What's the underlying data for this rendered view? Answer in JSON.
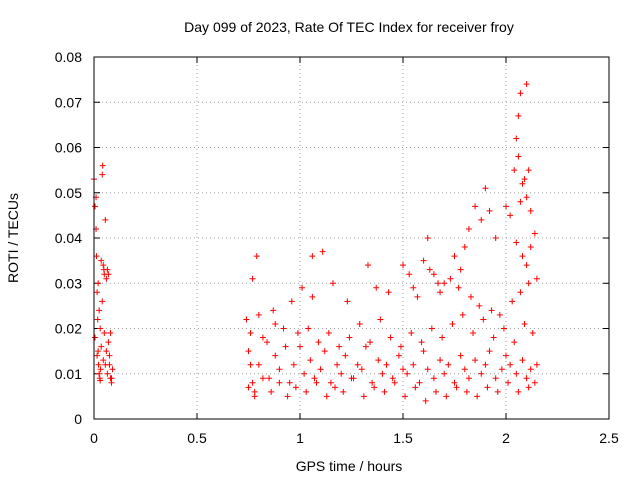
{
  "chart_data": {
    "type": "scatter",
    "title": "Day 099 of 2023, Rate Of TEC Index for receiver froy",
    "xlabel": "GPS time / hours",
    "ylabel": "ROTI / TECUs",
    "xlim": [
      0,
      2.5
    ],
    "ylim": [
      0,
      0.08
    ],
    "grid": true,
    "marker": "+",
    "color": "#ff0000",
    "xticks": [
      0,
      0.5,
      1,
      1.5,
      2,
      2.5
    ],
    "xtick_labels": [
      "0",
      "0.5",
      "1",
      "1.5",
      "2",
      "2.5"
    ],
    "yticks": [
      0,
      0.01,
      0.02,
      0.03,
      0.04,
      0.05,
      0.06,
      0.07,
      0.08
    ],
    "ytick_labels": [
      "0",
      "0.01",
      "0.02",
      "0.03",
      "0.04",
      "0.05",
      "0.06",
      "0.07",
      "0.08"
    ],
    "series": [
      {
        "name": "ROTI",
        "x": [
          0.0,
          0.005,
          0.01,
          0.012,
          0.015,
          0.018,
          0.02,
          0.022,
          0.025,
          0.028,
          0.03,
          0.032,
          0.035,
          0.04,
          0.042,
          0.045,
          0.048,
          0.05,
          0.055,
          0.06,
          0.065,
          0.07,
          0.075,
          0.08,
          0.085,
          0.09,
          0.005,
          0.015,
          0.025,
          0.035,
          0.045,
          0.055,
          0.065,
          0.075,
          0.085,
          0.01,
          0.02,
          0.03,
          0.04,
          0.05,
          0.06,
          0.07,
          0.08,
          0.74,
          0.75,
          0.76,
          0.77,
          0.78,
          0.8,
          0.82,
          0.85,
          0.88,
          0.9,
          0.92,
          0.95,
          0.97,
          1.0,
          1.02,
          1.05,
          1.07,
          1.1,
          1.12,
          1.15,
          1.18,
          1.2,
          1.22,
          1.25,
          1.28,
          1.3,
          1.32,
          1.35,
          1.38,
          1.4,
          1.42,
          1.45,
          1.48,
          1.5,
          1.52,
          1.55,
          1.58,
          1.6,
          1.62,
          1.65,
          1.68,
          1.7,
          1.72,
          1.75,
          1.78,
          1.8,
          1.82,
          1.85,
          1.88,
          1.9,
          1.92,
          1.95,
          1.98,
          2.0,
          2.02,
          2.05,
          2.08,
          2.1,
          2.12,
          2.15,
          0.75,
          0.78,
          0.82,
          0.86,
          0.9,
          0.94,
          0.98,
          1.03,
          1.08,
          1.13,
          1.17,
          1.21,
          1.26,
          1.31,
          1.36,
          1.41,
          1.46,
          1.51,
          1.56,
          1.61,
          1.66,
          1.71,
          1.76,
          1.81,
          1.86,
          1.91,
          1.96,
          2.01,
          2.06,
          2.11,
          2.14,
          0.76,
          0.8,
          0.84,
          0.88,
          0.93,
          0.99,
          1.04,
          1.09,
          1.14,
          1.19,
          1.24,
          1.29,
          1.34,
          1.39,
          1.44,
          1.49,
          1.54,
          1.59,
          1.64,
          1.69,
          1.74,
          1.79,
          1.84,
          1.89,
          1.94,
          1.99,
          2.04,
          2.09,
          2.13,
          0.77,
          0.79,
          0.87,
          0.96,
          1.01,
          1.06,
          1.06,
          1.11,
          1.16,
          1.23,
          1.33,
          1.37,
          1.43,
          1.53,
          1.57,
          1.63,
          1.67,
          1.73,
          1.77,
          1.83,
          1.87,
          1.93,
          1.97,
          2.03,
          2.07,
          2.11,
          2.15,
          1.5,
          1.55,
          1.6,
          1.62,
          1.65,
          1.68,
          1.7,
          1.75,
          1.78,
          1.8,
          1.82,
          1.85,
          1.88,
          1.9,
          1.92,
          1.95,
          2.0,
          2.02,
          2.05,
          2.07,
          2.08,
          2.1,
          2.12,
          2.14,
          2.04,
          2.05,
          2.06,
          2.07,
          2.06,
          2.08,
          2.09,
          2.1,
          2.1,
          2.11,
          2.12
        ],
        "y": [
          0.053,
          0.047,
          0.042,
          0.036,
          0.028,
          0.022,
          0.015,
          0.012,
          0.01,
          0.009,
          0.0085,
          0.011,
          0.035,
          0.054,
          0.056,
          0.034,
          0.033,
          0.032,
          0.044,
          0.031,
          0.033,
          0.032,
          0.012,
          0.009,
          0.008,
          0.011,
          0.018,
          0.014,
          0.024,
          0.016,
          0.013,
          0.012,
          0.01,
          0.014,
          0.009,
          0.049,
          0.03,
          0.02,
          0.026,
          0.019,
          0.015,
          0.017,
          0.019,
          0.022,
          0.015,
          0.012,
          0.008,
          0.006,
          0.012,
          0.018,
          0.009,
          0.014,
          0.011,
          0.02,
          0.008,
          0.012,
          0.016,
          0.01,
          0.013,
          0.009,
          0.011,
          0.015,
          0.008,
          0.012,
          0.01,
          0.014,
          0.009,
          0.012,
          0.011,
          0.016,
          0.008,
          0.013,
          0.01,
          0.012,
          0.009,
          0.014,
          0.011,
          0.01,
          0.012,
          0.008,
          0.015,
          0.011,
          0.009,
          0.013,
          0.01,
          0.012,
          0.008,
          0.014,
          0.011,
          0.009,
          0.013,
          0.01,
          0.012,
          0.015,
          0.009,
          0.011,
          0.014,
          0.012,
          0.01,
          0.013,
          0.009,
          0.011,
          0.012,
          0.007,
          0.005,
          0.009,
          0.006,
          0.008,
          0.005,
          0.007,
          0.006,
          0.008,
          0.005,
          0.007,
          0.006,
          0.009,
          0.005,
          0.007,
          0.006,
          0.008,
          0.005,
          0.007,
          0.004,
          0.006,
          0.005,
          0.007,
          0.006,
          0.005,
          0.007,
          0.006,
          0.008,
          0.006,
          0.007,
          0.008,
          0.019,
          0.023,
          0.017,
          0.021,
          0.016,
          0.019,
          0.02,
          0.017,
          0.019,
          0.016,
          0.018,
          0.021,
          0.017,
          0.022,
          0.018,
          0.016,
          0.019,
          0.017,
          0.02,
          0.018,
          0.021,
          0.023,
          0.019,
          0.022,
          0.018,
          0.02,
          0.017,
          0.021,
          0.019,
          0.031,
          0.036,
          0.024,
          0.026,
          0.029,
          0.027,
          0.036,
          0.037,
          0.03,
          0.026,
          0.034,
          0.029,
          0.028,
          0.032,
          0.027,
          0.033,
          0.03,
          0.031,
          0.029,
          0.027,
          0.025,
          0.024,
          0.023,
          0.026,
          0.028,
          0.03,
          0.031,
          0.034,
          0.029,
          0.035,
          0.04,
          0.032,
          0.028,
          0.03,
          0.036,
          0.033,
          0.038,
          0.042,
          0.047,
          0.044,
          0.051,
          0.046,
          0.04,
          0.047,
          0.045,
          0.039,
          0.048,
          0.036,
          0.034,
          0.038,
          0.041,
          0.055,
          0.062,
          0.067,
          0.072,
          0.058,
          0.052,
          0.053,
          0.074,
          0.049,
          0.055,
          0.046
        ]
      }
    ]
  }
}
